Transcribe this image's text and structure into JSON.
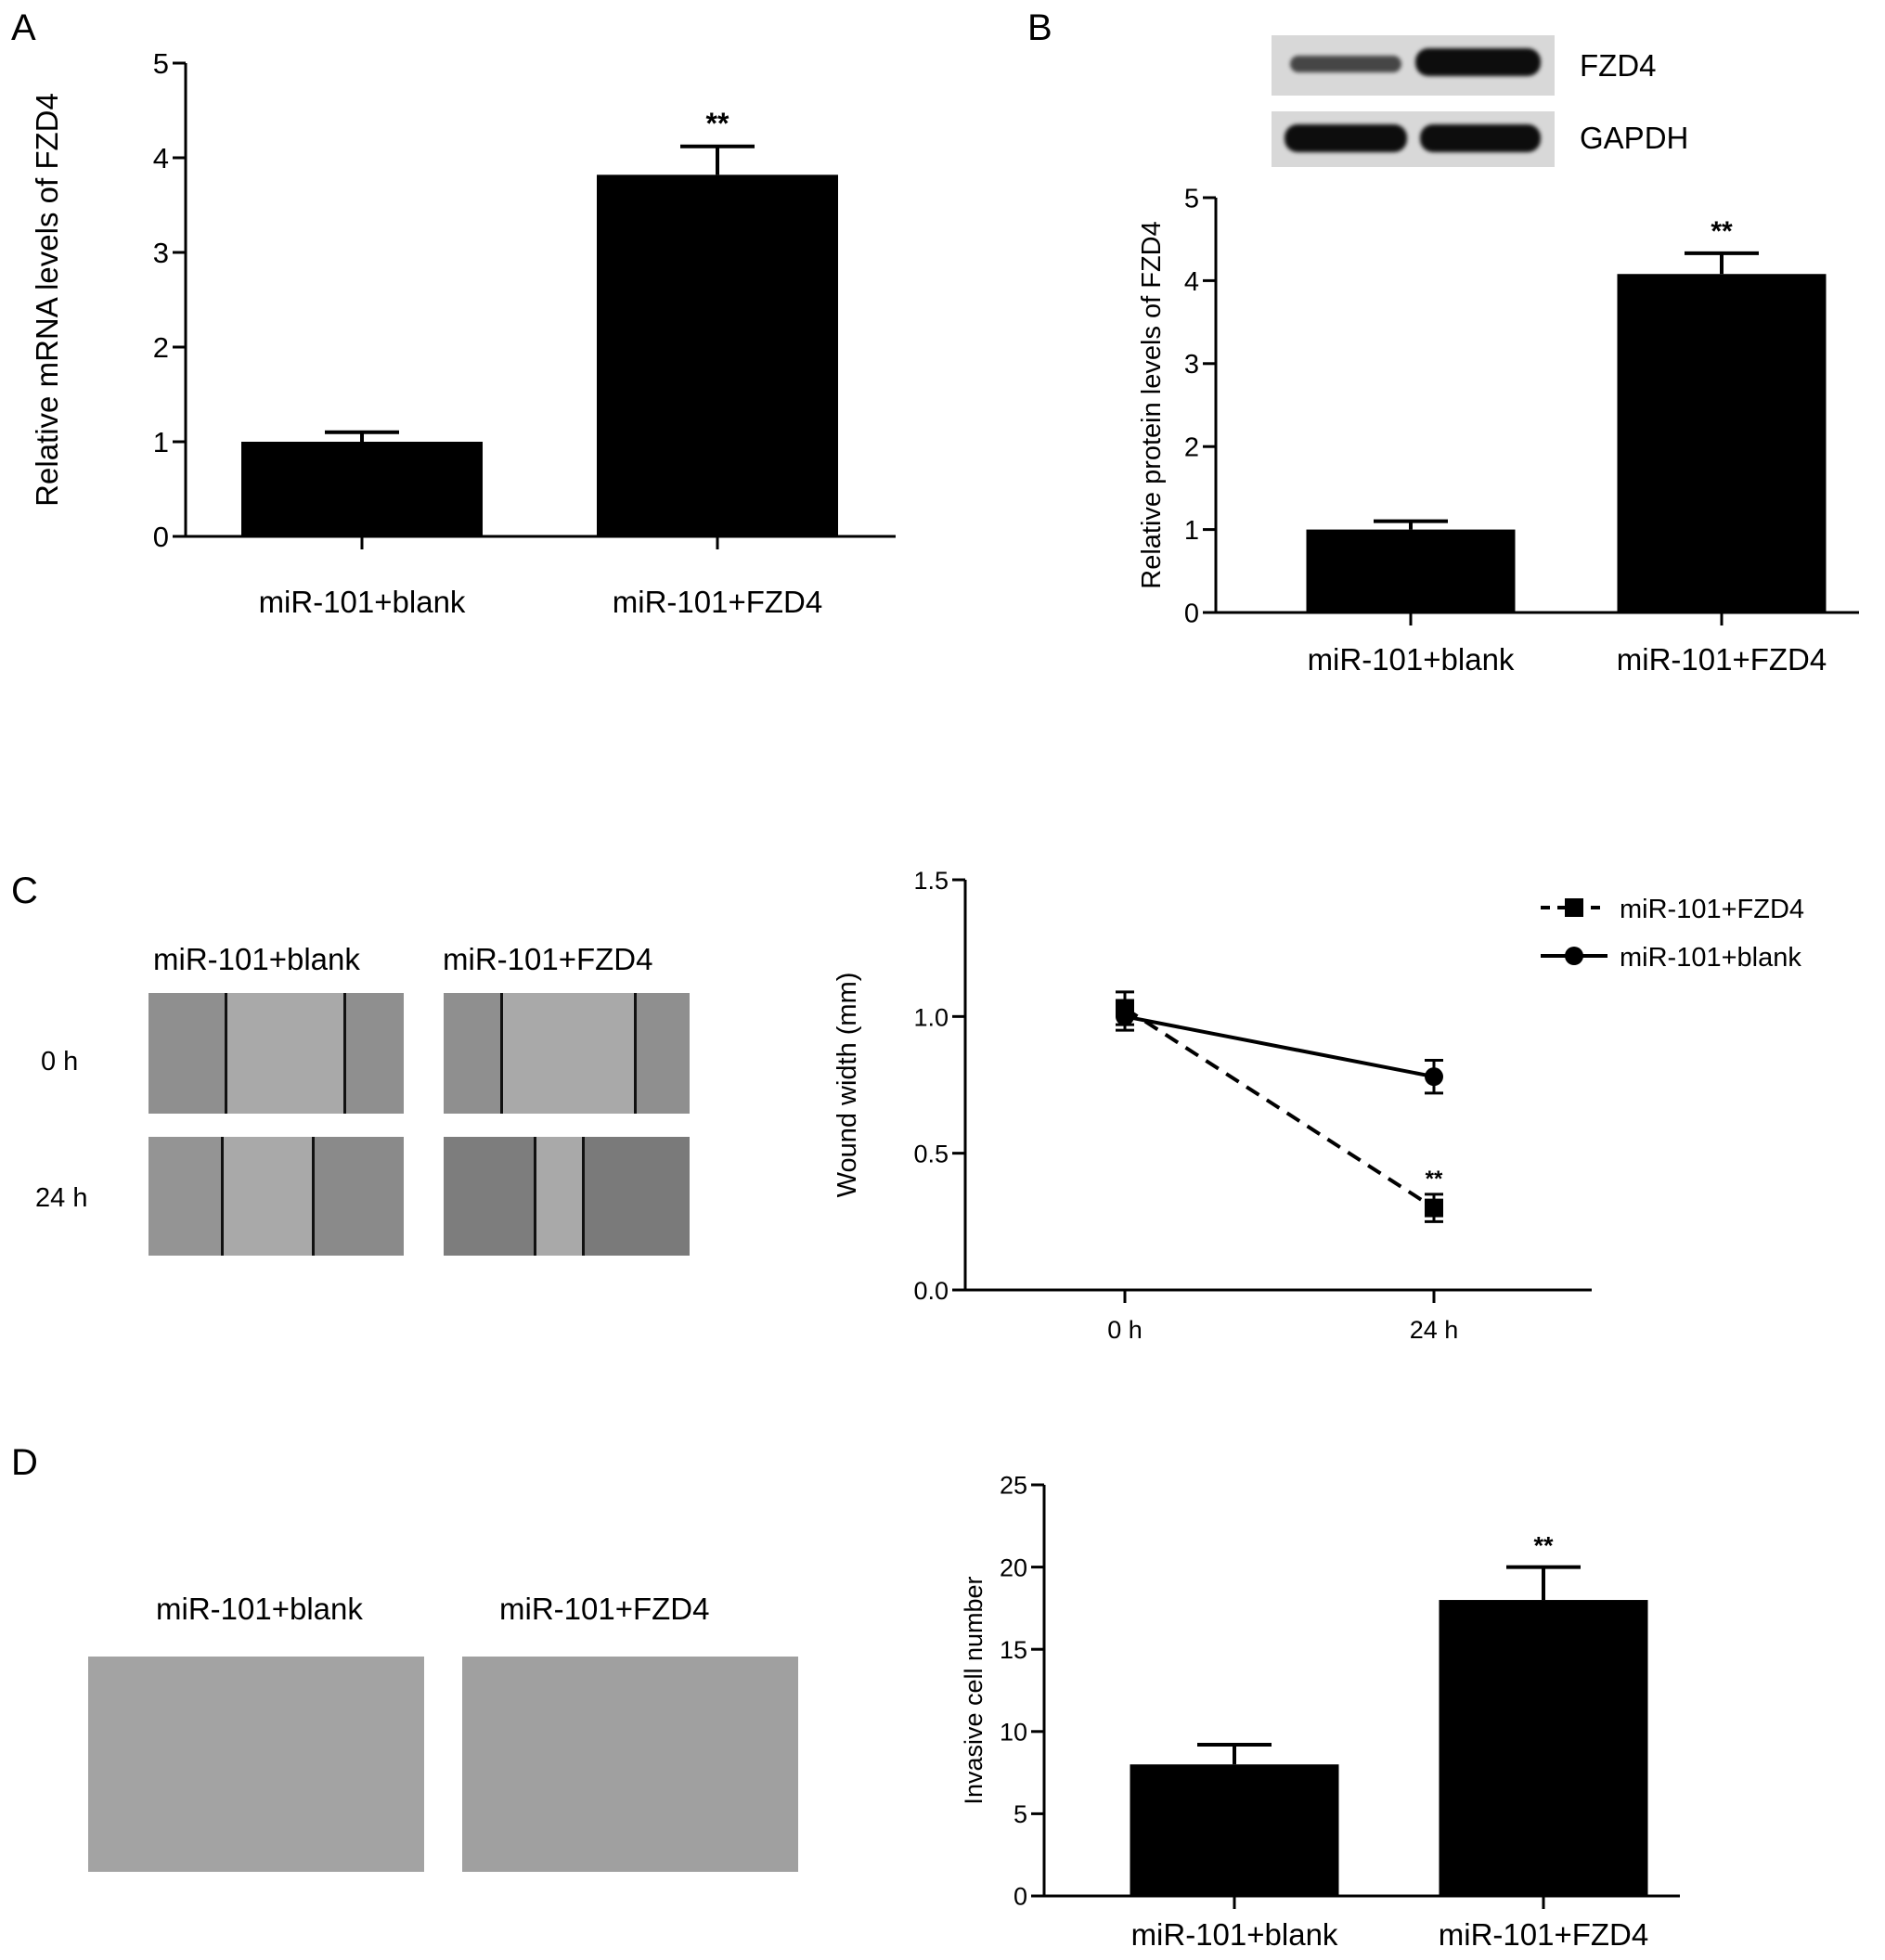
{
  "panels": {
    "A": "A",
    "B": "B",
    "C": "C",
    "D": "D"
  },
  "colors": {
    "bar": "#000000",
    "axis": "#000000",
    "micrograph": "#a9a9a9",
    "blot_band": "#111111"
  },
  "western_blot": {
    "band_labels": [
      "FZD4",
      "GAPDH"
    ],
    "lanes": 2,
    "band_intensity": {
      "FZD4": [
        0.35,
        1.0
      ],
      "GAPDH": [
        1.0,
        1.0
      ]
    }
  },
  "wound_images": {
    "column_labels": [
      "miR-101+blank",
      "miR-101+FZD4"
    ],
    "row_labels": [
      "0 h",
      "24 h"
    ]
  },
  "invasion_images": {
    "column_labels": [
      "miR-101+blank",
      "miR-101+FZD4"
    ]
  },
  "chart_data": [
    {
      "id": "A",
      "type": "bar",
      "categories": [
        "miR-101+blank",
        "miR-101+FZD4"
      ],
      "values": [
        1.0,
        3.82
      ],
      "errors": [
        0.1,
        0.3
      ],
      "annotations": [
        "",
        "**"
      ],
      "ylabel": "Relative mRNA levels of FZD4",
      "ylim": [
        0,
        5
      ],
      "yticks": [
        "0",
        "1",
        "2",
        "3",
        "4",
        "5"
      ],
      "grid": false
    },
    {
      "id": "B",
      "type": "bar",
      "categories": [
        "miR-101+blank",
        "miR-101+FZD4"
      ],
      "values": [
        1.0,
        4.08
      ],
      "errors": [
        0.1,
        0.25
      ],
      "annotations": [
        "",
        "**"
      ],
      "ylabel": "Relative protein levels of FZD4",
      "ylim": [
        0,
        5
      ],
      "yticks": [
        "0",
        "1",
        "2",
        "3",
        "4",
        "5"
      ],
      "grid": false
    },
    {
      "id": "C",
      "type": "line",
      "x": [
        "0 h",
        "24 h"
      ],
      "series": [
        {
          "name": "miR-101+FZD4",
          "values": [
            1.03,
            0.3
          ],
          "errors": [
            0.06,
            0.05
          ],
          "style": "dashed",
          "marker": "square"
        },
        {
          "name": "miR-101+blank",
          "values": [
            1.0,
            0.78
          ],
          "errors": [
            0.05,
            0.06
          ],
          "style": "solid",
          "marker": "circle"
        }
      ],
      "annotations": [
        {
          "x": "24 h",
          "text": "**"
        }
      ],
      "ylabel": "Wound width (mm)",
      "ylim": [
        0,
        1.5
      ],
      "yticks": [
        "0.0",
        "0.5",
        "1.0",
        "1.5"
      ],
      "legend": "top-right",
      "grid": false
    },
    {
      "id": "D",
      "type": "bar",
      "categories": [
        "miR-101+blank",
        "miR-101+FZD4"
      ],
      "values": [
        8,
        18
      ],
      "errors": [
        1.2,
        2.0
      ],
      "annotations": [
        "",
        "**"
      ],
      "ylabel": "Invasive cell number",
      "ylim": [
        0,
        25
      ],
      "yticks": [
        "0",
        "5",
        "10",
        "15",
        "20",
        "25"
      ],
      "grid": false
    }
  ]
}
